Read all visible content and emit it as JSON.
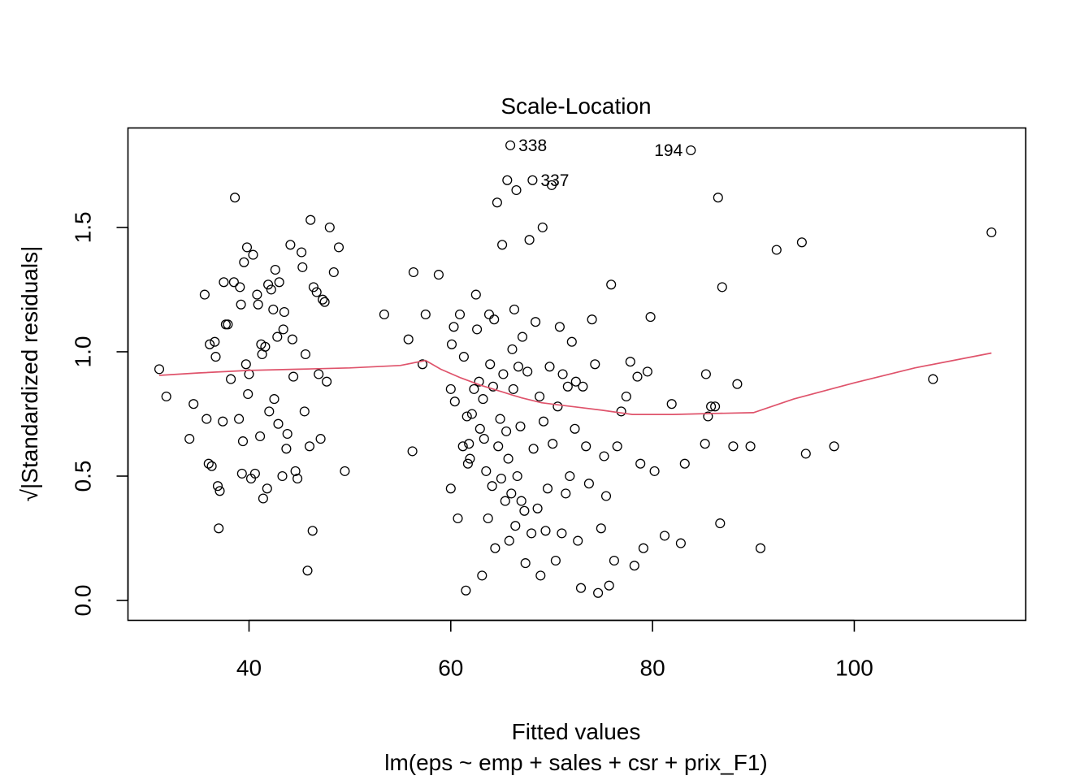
{
  "chart_data": {
    "type": "scatter",
    "title": "Scale-Location",
    "xlabel": "Fitted values",
    "subtitle": "lm(eps ~ emp + sales + csr + prix_F1)",
    "ylabel": "√|Standardized residuals|",
    "xlim": [
      28,
      117
    ],
    "ylim": [
      -0.08,
      1.9
    ],
    "x_ticks": [
      40,
      60,
      80,
      100
    ],
    "x_tick_labels": [
      "40",
      "60",
      "80",
      "100"
    ],
    "y_ticks": [
      0.0,
      0.5,
      1.0,
      1.5
    ],
    "y_tick_labels": [
      "0.0",
      "0.5",
      "1.0",
      "1.5"
    ],
    "point_color": "#000000",
    "smooth_color": "#DF536B",
    "labeled_points": [
      {
        "label": "338",
        "x": 65.9,
        "y": 1.83,
        "side": "right"
      },
      {
        "label": "337",
        "x": 68.1,
        "y": 1.69,
        "side": "right"
      },
      {
        "label": "194",
        "x": 83.8,
        "y": 1.81,
        "side": "left"
      }
    ],
    "smooth": {
      "x": [
        31.1,
        35,
        40,
        45,
        50,
        55,
        57.5,
        59,
        61,
        63,
        65,
        67,
        69,
        71,
        73,
        75,
        78,
        82,
        86,
        90,
        94,
        100,
        106,
        113.6
      ],
      "y": [
        0.905,
        0.915,
        0.925,
        0.93,
        0.935,
        0.945,
        0.965,
        0.93,
        0.895,
        0.865,
        0.84,
        0.815,
        0.795,
        0.785,
        0.775,
        0.765,
        0.748,
        0.748,
        0.752,
        0.755,
        0.81,
        0.875,
        0.935,
        0.995
      ]
    },
    "points": [
      [
        31.1,
        0.93
      ],
      [
        31.8,
        0.82
      ],
      [
        34.1,
        0.65
      ],
      [
        34.5,
        0.79
      ],
      [
        35.6,
        1.23
      ],
      [
        35.8,
        0.73
      ],
      [
        36.0,
        0.55
      ],
      [
        36.1,
        1.03
      ],
      [
        36.3,
        0.54
      ],
      [
        36.6,
        1.04
      ],
      [
        36.7,
        0.98
      ],
      [
        36.9,
        0.46
      ],
      [
        37.0,
        0.29
      ],
      [
        37.1,
        0.44
      ],
      [
        37.4,
        0.72
      ],
      [
        37.5,
        1.28
      ],
      [
        37.7,
        1.11
      ],
      [
        37.9,
        1.11
      ],
      [
        38.2,
        0.89
      ],
      [
        38.5,
        1.28
      ],
      [
        38.6,
        1.62
      ],
      [
        39.0,
        0.73
      ],
      [
        39.1,
        1.26
      ],
      [
        39.2,
        1.19
      ],
      [
        39.3,
        0.51
      ],
      [
        39.4,
        0.64
      ],
      [
        39.5,
        1.36
      ],
      [
        39.7,
        0.95
      ],
      [
        39.8,
        1.42
      ],
      [
        39.9,
        0.83
      ],
      [
        40.0,
        0.91
      ],
      [
        40.2,
        0.49
      ],
      [
        40.4,
        1.39
      ],
      [
        40.6,
        0.51
      ],
      [
        40.8,
        1.23
      ],
      [
        40.9,
        1.19
      ],
      [
        41.1,
        0.66
      ],
      [
        41.2,
        1.03
      ],
      [
        41.3,
        0.99
      ],
      [
        41.4,
        0.41
      ],
      [
        41.6,
        1.02
      ],
      [
        41.8,
        0.45
      ],
      [
        41.9,
        1.27
      ],
      [
        42.0,
        0.76
      ],
      [
        42.2,
        1.25
      ],
      [
        42.4,
        1.17
      ],
      [
        42.5,
        0.81
      ],
      [
        42.6,
        1.33
      ],
      [
        42.8,
        1.06
      ],
      [
        42.9,
        0.71
      ],
      [
        43.0,
        1.28
      ],
      [
        43.3,
        0.5
      ],
      [
        43.4,
        1.09
      ],
      [
        43.5,
        1.16
      ],
      [
        43.7,
        0.61
      ],
      [
        43.8,
        0.67
      ],
      [
        44.1,
        1.43
      ],
      [
        44.3,
        1.05
      ],
      [
        44.4,
        0.9
      ],
      [
        44.6,
        0.52
      ],
      [
        44.8,
        0.49
      ],
      [
        45.2,
        1.4
      ],
      [
        45.3,
        1.34
      ],
      [
        45.5,
        0.76
      ],
      [
        45.6,
        0.99
      ],
      [
        45.8,
        0.12
      ],
      [
        46.0,
        0.62
      ],
      [
        46.1,
        1.53
      ],
      [
        46.3,
        0.28
      ],
      [
        46.4,
        1.26
      ],
      [
        46.7,
        1.24
      ],
      [
        46.9,
        0.91
      ],
      [
        47.1,
        0.65
      ],
      [
        47.3,
        1.21
      ],
      [
        47.5,
        1.2
      ],
      [
        47.7,
        0.88
      ],
      [
        48.0,
        1.5
      ],
      [
        48.4,
        1.32
      ],
      [
        48.9,
        1.42
      ],
      [
        49.5,
        0.52
      ],
      [
        53.4,
        1.15
      ],
      [
        55.8,
        1.05
      ],
      [
        56.2,
        0.6
      ],
      [
        56.3,
        1.32
      ],
      [
        57.2,
        0.95
      ],
      [
        57.5,
        1.15
      ],
      [
        58.8,
        1.31
      ],
      [
        60.0,
        0.45
      ],
      [
        60.0,
        0.85
      ],
      [
        60.1,
        1.03
      ],
      [
        60.3,
        1.1
      ],
      [
        60.4,
        0.8
      ],
      [
        60.7,
        0.33
      ],
      [
        60.9,
        1.15
      ],
      [
        61.2,
        0.62
      ],
      [
        61.3,
        0.98
      ],
      [
        61.5,
        0.04
      ],
      [
        61.6,
        0.74
      ],
      [
        61.7,
        0.55
      ],
      [
        61.8,
        0.63
      ],
      [
        61.9,
        0.57
      ],
      [
        62.1,
        0.75
      ],
      [
        62.3,
        0.85
      ],
      [
        62.5,
        1.23
      ],
      [
        62.6,
        1.09
      ],
      [
        62.8,
        0.88
      ],
      [
        62.9,
        0.69
      ],
      [
        63.1,
        0.1
      ],
      [
        63.2,
        0.81
      ],
      [
        63.3,
        0.65
      ],
      [
        63.5,
        0.52
      ],
      [
        63.7,
        0.33
      ],
      [
        63.8,
        1.15
      ],
      [
        63.9,
        0.95
      ],
      [
        64.1,
        0.46
      ],
      [
        64.2,
        0.86
      ],
      [
        64.3,
        1.13
      ],
      [
        64.4,
        0.21
      ],
      [
        64.6,
        1.6
      ],
      [
        64.7,
        0.62
      ],
      [
        64.9,
        0.73
      ],
      [
        65.0,
        0.49
      ],
      [
        65.1,
        1.43
      ],
      [
        65.2,
        0.91
      ],
      [
        65.4,
        0.4
      ],
      [
        65.5,
        0.68
      ],
      [
        65.6,
        1.69
      ],
      [
        65.7,
        0.57
      ],
      [
        65.8,
        0.24
      ],
      [
        65.9,
        1.83
      ],
      [
        66.0,
        0.43
      ],
      [
        66.1,
        1.01
      ],
      [
        66.2,
        0.85
      ],
      [
        66.3,
        1.17
      ],
      [
        66.4,
        0.3
      ],
      [
        66.5,
        1.65
      ],
      [
        66.6,
        0.5
      ],
      [
        66.7,
        0.94
      ],
      [
        66.9,
        0.7
      ],
      [
        67.0,
        0.4
      ],
      [
        67.1,
        1.06
      ],
      [
        67.3,
        0.36
      ],
      [
        67.4,
        0.15
      ],
      [
        67.6,
        0.92
      ],
      [
        67.8,
        1.45
      ],
      [
        68.0,
        0.27
      ],
      [
        68.1,
        1.69
      ],
      [
        68.2,
        0.61
      ],
      [
        68.4,
        1.12
      ],
      [
        68.6,
        0.37
      ],
      [
        68.8,
        0.82
      ],
      [
        68.9,
        0.1
      ],
      [
        69.1,
        1.5
      ],
      [
        69.2,
        0.72
      ],
      [
        69.4,
        0.28
      ],
      [
        69.6,
        0.45
      ],
      [
        69.8,
        0.94
      ],
      [
        70.0,
        1.67
      ],
      [
        70.1,
        0.63
      ],
      [
        70.4,
        0.16
      ],
      [
        70.6,
        0.78
      ],
      [
        70.8,
        1.1
      ],
      [
        71.0,
        0.27
      ],
      [
        71.1,
        0.91
      ],
      [
        71.4,
        0.43
      ],
      [
        71.6,
        0.86
      ],
      [
        71.8,
        0.5
      ],
      [
        72.0,
        1.04
      ],
      [
        72.3,
        0.69
      ],
      [
        72.4,
        0.88
      ],
      [
        72.6,
        0.24
      ],
      [
        72.9,
        0.05
      ],
      [
        73.1,
        0.86
      ],
      [
        73.4,
        0.62
      ],
      [
        73.7,
        0.47
      ],
      [
        74.0,
        1.13
      ],
      [
        74.3,
        0.95
      ],
      [
        74.6,
        0.03
      ],
      [
        74.9,
        0.29
      ],
      [
        75.2,
        0.58
      ],
      [
        75.4,
        0.42
      ],
      [
        75.7,
        0.06
      ],
      [
        75.9,
        1.27
      ],
      [
        76.2,
        0.16
      ],
      [
        76.5,
        0.62
      ],
      [
        76.9,
        0.76
      ],
      [
        77.4,
        0.82
      ],
      [
        77.8,
        0.96
      ],
      [
        78.2,
        0.14
      ],
      [
        78.5,
        0.9
      ],
      [
        78.8,
        0.55
      ],
      [
        79.1,
        0.21
      ],
      [
        79.5,
        0.92
      ],
      [
        79.8,
        1.14
      ],
      [
        80.2,
        0.52
      ],
      [
        81.2,
        0.26
      ],
      [
        81.9,
        0.79
      ],
      [
        82.8,
        0.23
      ],
      [
        83.2,
        0.55
      ],
      [
        83.8,
        1.81
      ],
      [
        85.2,
        0.63
      ],
      [
        85.3,
        0.91
      ],
      [
        85.5,
        0.74
      ],
      [
        85.8,
        0.78
      ],
      [
        86.2,
        0.78
      ],
      [
        86.5,
        1.62
      ],
      [
        86.7,
        0.31
      ],
      [
        86.9,
        1.26
      ],
      [
        88.0,
        0.62
      ],
      [
        88.4,
        0.87
      ],
      [
        89.7,
        0.62
      ],
      [
        90.7,
        0.21
      ],
      [
        92.3,
        1.41
      ],
      [
        94.8,
        1.44
      ],
      [
        95.2,
        0.59
      ],
      [
        98.0,
        0.62
      ],
      [
        107.8,
        0.89
      ],
      [
        113.6,
        1.48
      ]
    ]
  }
}
